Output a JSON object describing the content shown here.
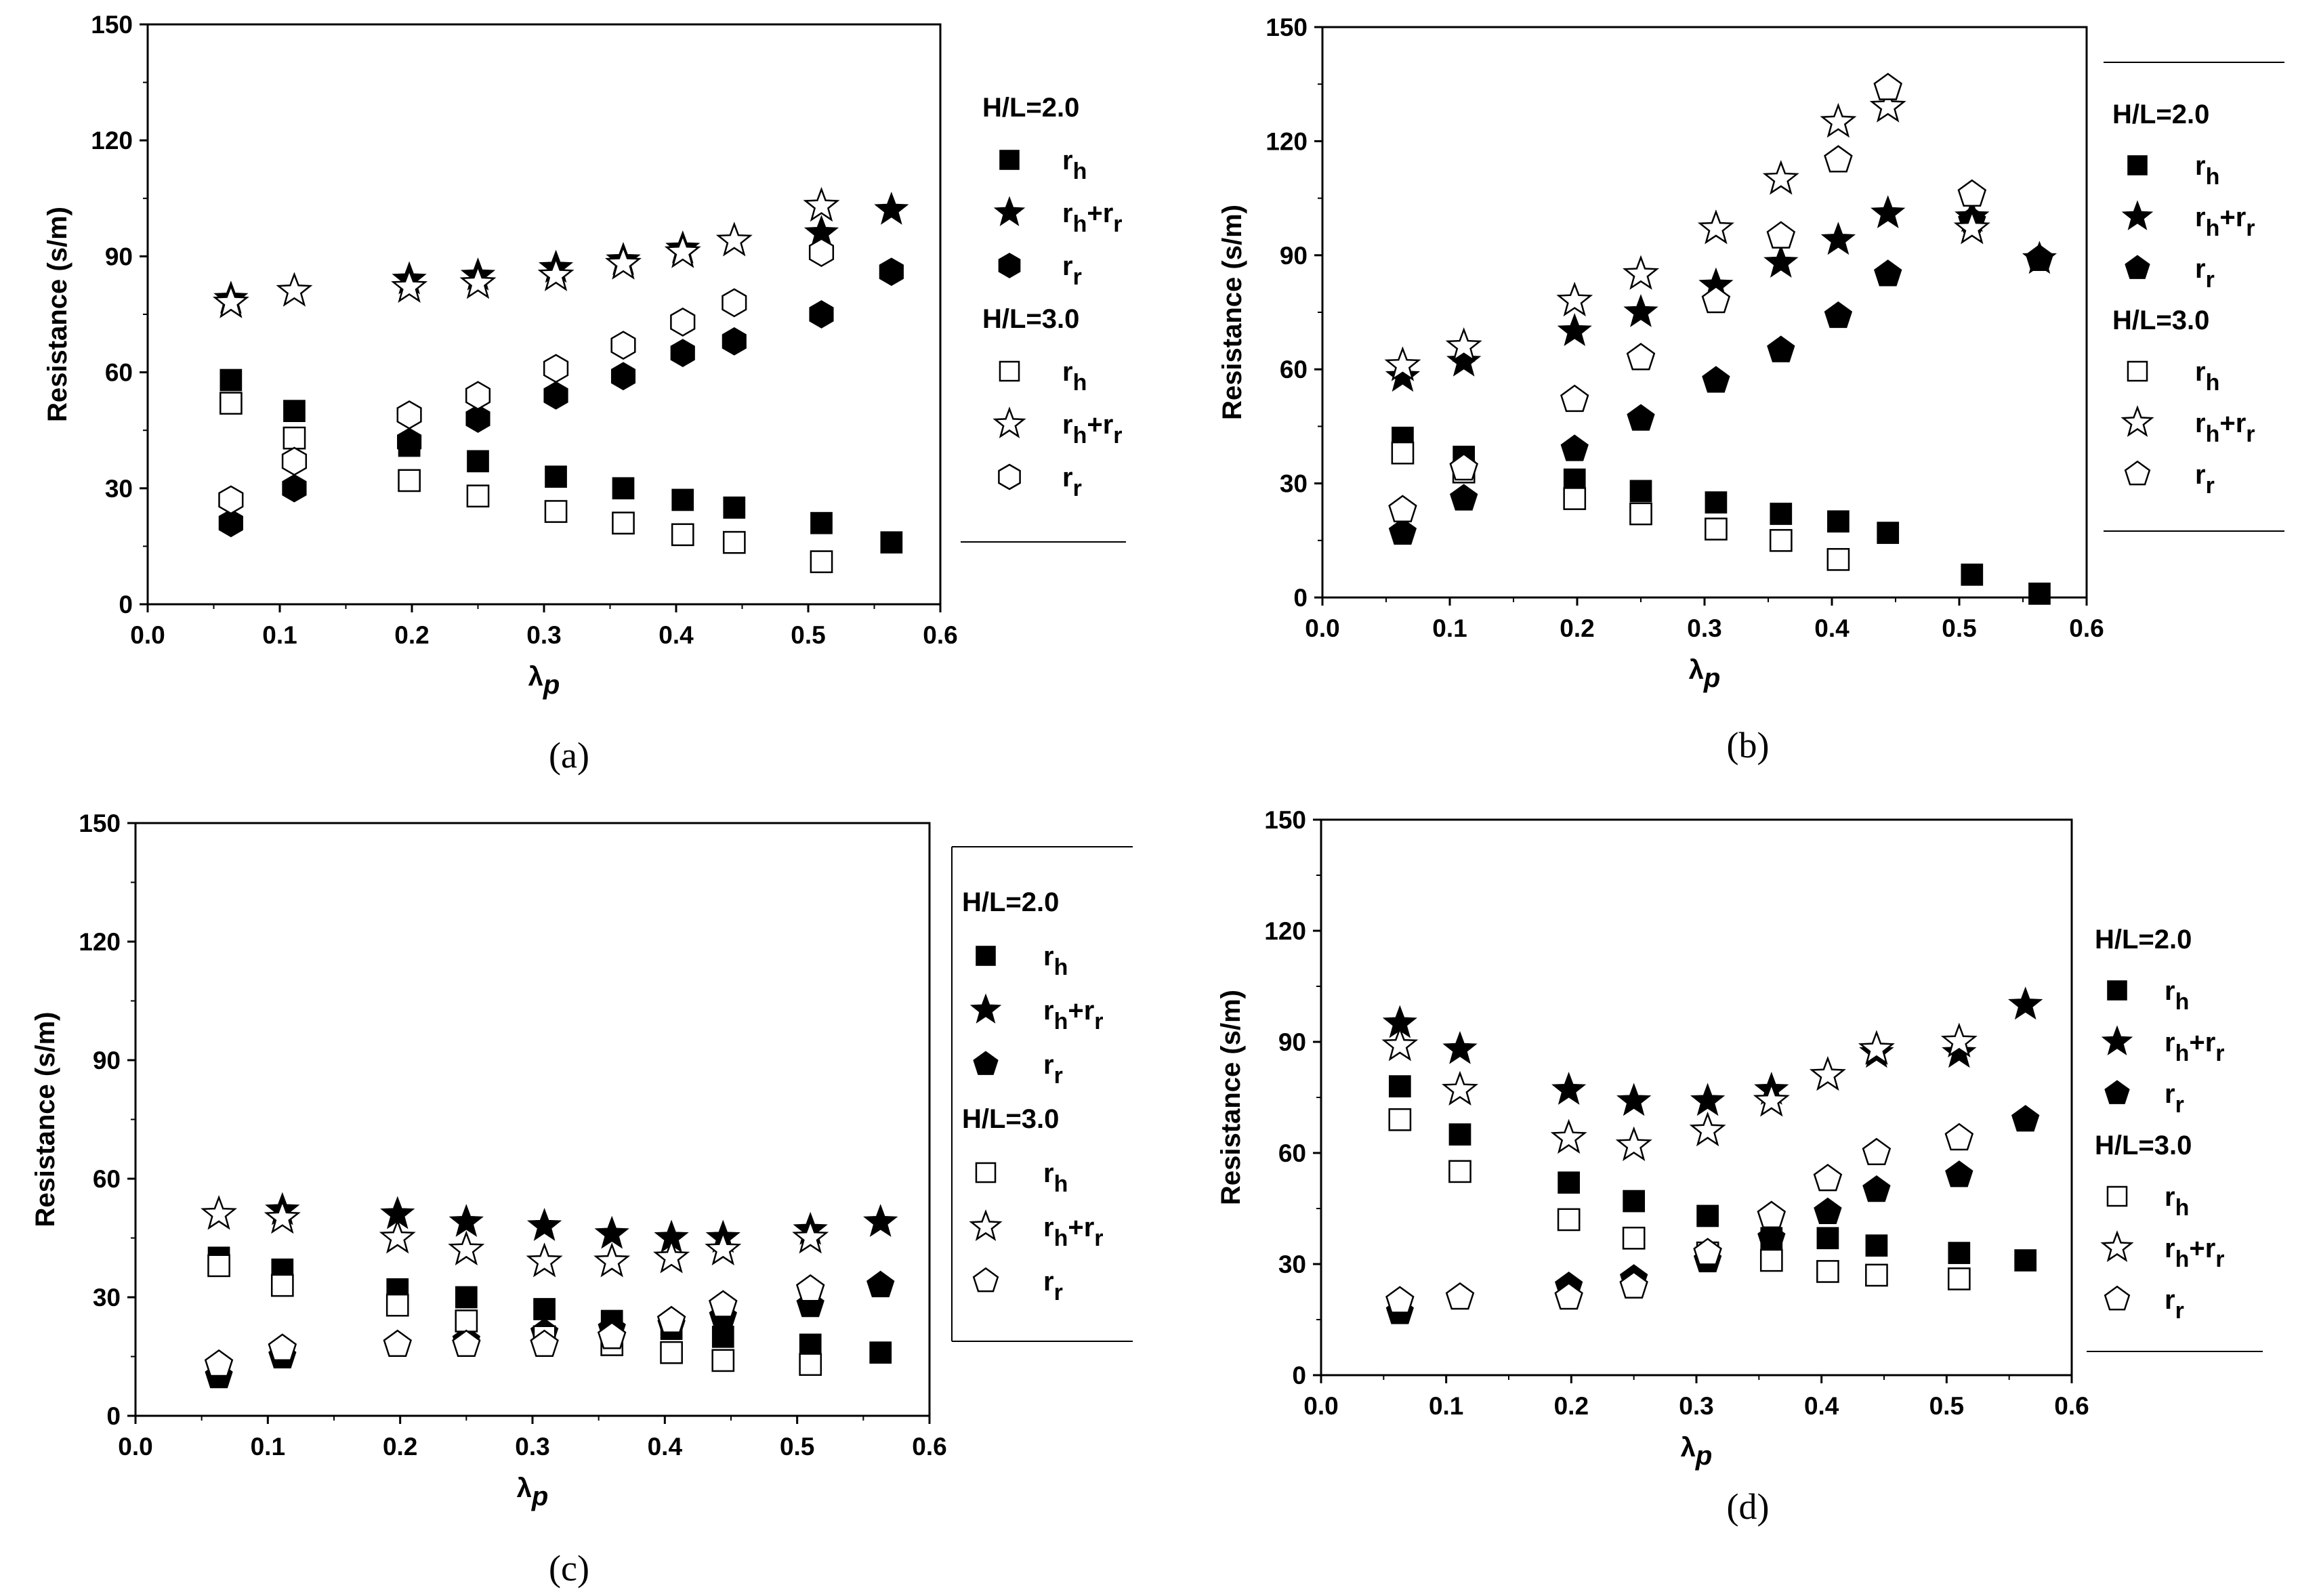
{
  "chart_data": [
    {
      "panel": "(a)",
      "type": "scatter",
      "xlabel": "λp",
      "ylabel": "Resistance (s/m)",
      "xlim": [
        0.0,
        0.6
      ],
      "ylim": [
        0,
        150
      ],
      "xticks": [
        "0.0",
        "0.1",
        "0.2",
        "0.3",
        "0.4",
        "0.5",
        "0.6"
      ],
      "yticks": [
        "0",
        "30",
        "60",
        "90",
        "120",
        "150"
      ],
      "legend": {
        "position": "right",
        "group1": "H/L=2.0",
        "group2": "H/L=3.0",
        "labels": [
          "rh",
          "rh+rr",
          "rr"
        ]
      },
      "series": [
        {
          "name": "H/L=2.0 rh",
          "marker": "square",
          "filled": true,
          "x": [
            0.063,
            0.111,
            0.198,
            0.25,
            0.309,
            0.36,
            0.405,
            0.444,
            0.51,
            0.563
          ],
          "y": [
            58,
            50,
            41,
            37,
            33,
            30,
            27,
            25,
            21,
            16
          ]
        },
        {
          "name": "H/L=2.0 rh+rr",
          "marker": "star",
          "filled": true,
          "x": [
            0.063,
            0.198,
            0.25,
            0.309,
            0.36,
            0.405,
            0.444,
            0.51,
            0.563
          ],
          "y": [
            79,
            84,
            85,
            87,
            89,
            92,
            94,
            96,
            102
          ]
        },
        {
          "name": "H/L=2.0 rr",
          "marker": "hexagon",
          "filled": true,
          "x": [
            0.063,
            0.111,
            0.198,
            0.25,
            0.309,
            0.36,
            0.405,
            0.444,
            0.51,
            0.563
          ],
          "y": [
            21,
            30,
            42,
            48,
            54,
            59,
            65,
            68,
            75,
            86
          ]
        },
        {
          "name": "H/L=3.0 rh",
          "marker": "square",
          "filled": false,
          "x": [
            0.063,
            0.111,
            0.198,
            0.25,
            0.309,
            0.36,
            0.405,
            0.444,
            0.51
          ],
          "y": [
            52,
            43,
            32,
            28,
            24,
            21,
            18,
            16,
            11
          ]
        },
        {
          "name": "H/L=3.0 rh+rr",
          "marker": "star",
          "filled": false,
          "x": [
            0.063,
            0.111,
            0.198,
            0.25,
            0.309,
            0.36,
            0.405,
            0.444,
            0.51
          ],
          "y": [
            78,
            81,
            82,
            83,
            85,
            88,
            91,
            94,
            103
          ]
        },
        {
          "name": "H/L=3.0 rr",
          "marker": "hexagon",
          "filled": false,
          "x": [
            0.063,
            0.111,
            0.198,
            0.25,
            0.309,
            0.36,
            0.405,
            0.444,
            0.51
          ],
          "y": [
            27,
            37,
            49,
            54,
            61,
            67,
            73,
            78,
            91
          ]
        }
      ]
    },
    {
      "panel": "(b)",
      "type": "scatter",
      "xlabel": "λp",
      "ylabel": "Resistance (s/m)",
      "xlim": [
        0.0,
        0.6
      ],
      "ylim": [
        0,
        150
      ],
      "xticks": [
        "0.0",
        "0.1",
        "0.2",
        "0.3",
        "0.4",
        "0.5",
        "0.6"
      ],
      "yticks": [
        "0",
        "30",
        "60",
        "90",
        "120",
        "150"
      ],
      "legend": {
        "position": "right",
        "group1": "H/L=2.0",
        "group2": "H/L=3.0",
        "labels": [
          "rh",
          "rh+rr",
          "rr"
        ]
      },
      "series": [
        {
          "name": "H/L=2.0 rh",
          "marker": "square",
          "filled": true,
          "x": [
            0.063,
            0.111,
            0.198,
            0.25,
            0.309,
            0.36,
            0.405,
            0.444,
            0.51,
            0.563
          ],
          "y": [
            42,
            37,
            31,
            28,
            25,
            22,
            20,
            17,
            6,
            1
          ]
        },
        {
          "name": "H/L=2.0 rh+rr",
          "marker": "star",
          "filled": true,
          "x": [
            0.063,
            0.111,
            0.198,
            0.25,
            0.309,
            0.36,
            0.405,
            0.444,
            0.51,
            0.563
          ],
          "y": [
            58,
            62,
            70,
            75,
            82,
            88,
            94,
            101,
            100,
            89
          ]
        },
        {
          "name": "H/L=2.0 rr",
          "marker": "pentagon",
          "filled": true,
          "x": [
            0.063,
            0.111,
            0.198,
            0.25,
            0.309,
            0.36,
            0.405,
            0.444,
            0.51,
            0.563
          ],
          "y": [
            17,
            26,
            39,
            47,
            57,
            65,
            74,
            85,
            99,
            89
          ]
        },
        {
          "name": "H/L=3.0 rh",
          "marker": "square",
          "filled": false,
          "x": [
            0.063,
            0.111,
            0.198,
            0.25,
            0.309,
            0.36,
            0.405
          ],
          "y": [
            38,
            33,
            26,
            22,
            18,
            15,
            10
          ]
        },
        {
          "name": "H/L=3.0 rh+rr",
          "marker": "star",
          "filled": false,
          "x": [
            0.063,
            0.111,
            0.198,
            0.25,
            0.309,
            0.36,
            0.405,
            0.444,
            0.51
          ],
          "y": [
            61,
            66,
            78,
            85,
            97,
            110,
            125,
            129,
            97
          ]
        },
        {
          "name": "H/L=3.0 rr",
          "marker": "pentagon",
          "filled": false,
          "x": [
            0.063,
            0.111,
            0.198,
            0.25,
            0.309,
            0.36,
            0.405,
            0.444,
            0.51
          ],
          "y": [
            23,
            34,
            52,
            63,
            78,
            95,
            115,
            134,
            106
          ]
        }
      ]
    },
    {
      "panel": "(c)",
      "type": "scatter",
      "xlabel": "λp",
      "ylabel": "Resistance (s/m)",
      "xlim": [
        0.0,
        0.6
      ],
      "ylim": [
        0,
        150
      ],
      "xticks": [
        "0.0",
        "0.1",
        "0.2",
        "0.3",
        "0.4",
        "0.5",
        "0.6"
      ],
      "yticks": [
        "0",
        "30",
        "60",
        "90",
        "120",
        "150"
      ],
      "legend": {
        "position": "right",
        "group1": "H/L=2.0",
        "group2": "H/L=3.0",
        "labels": [
          "rh",
          "rh+rr",
          "rr"
        ]
      },
      "series": [
        {
          "name": "H/L=2.0 rh",
          "marker": "square",
          "filled": true,
          "x": [
            0.063,
            0.111,
            0.198,
            0.25,
            0.309,
            0.36,
            0.405,
            0.444,
            0.51,
            0.563
          ],
          "y": [
            40,
            37,
            32,
            30,
            27,
            24,
            22,
            20,
            18,
            16
          ]
        },
        {
          "name": "H/L=2.0 rh+rr",
          "marker": "star",
          "filled": true,
          "x": [
            0.111,
            0.198,
            0.25,
            0.309,
            0.36,
            0.405,
            0.444,
            0.51,
            0.563
          ],
          "y": [
            52,
            51,
            49,
            48,
            46,
            45,
            45,
            47,
            49
          ]
        },
        {
          "name": "H/L=2.0 rr",
          "marker": "pentagon",
          "filled": true,
          "x": [
            0.063,
            0.111,
            0.25,
            0.309,
            0.36,
            0.405,
            0.444,
            0.51,
            0.563
          ],
          "y": [
            10,
            15,
            19,
            21,
            22,
            23,
            25,
            28,
            33
          ]
        },
        {
          "name": "H/L=3.0 rh",
          "marker": "square",
          "filled": false,
          "x": [
            0.063,
            0.111,
            0.198,
            0.25,
            0.309,
            0.36,
            0.405,
            0.444,
            0.51
          ],
          "y": [
            38,
            33,
            28,
            24,
            20,
            18,
            16,
            14,
            13
          ]
        },
        {
          "name": "H/L=3.0 rh+rr",
          "marker": "star",
          "filled": false,
          "x": [
            0.063,
            0.111,
            0.198,
            0.25,
            0.309,
            0.36,
            0.405,
            0.444,
            0.51
          ],
          "y": [
            51,
            50,
            45,
            42,
            39,
            39,
            40,
            42,
            45
          ]
        },
        {
          "name": "H/L=3.0 rr",
          "marker": "pentagon",
          "filled": false,
          "x": [
            0.063,
            0.111,
            0.198,
            0.25,
            0.309,
            0.36,
            0.405,
            0.444,
            0.51
          ],
          "y": [
            13,
            17,
            18,
            18,
            18,
            20,
            24,
            28,
            32
          ]
        }
      ]
    },
    {
      "panel": "(d)",
      "type": "scatter",
      "xlabel": "λp",
      "ylabel": "Resistance (s/m)",
      "xlim": [
        0.0,
        0.6
      ],
      "ylim": [
        0,
        150
      ],
      "xticks": [
        "0.0",
        "0.1",
        "0.2",
        "0.3",
        "0.4",
        "0.5",
        "0.6"
      ],
      "yticks": [
        "0",
        "30",
        "60",
        "90",
        "120",
        "150"
      ],
      "legend": {
        "position": "right",
        "group1": "H/L=2.0",
        "group2": "H/L=3.0",
        "labels": [
          "rh",
          "rh+rr",
          "rr"
        ]
      },
      "series": [
        {
          "name": "H/L=2.0 rh",
          "marker": "square",
          "filled": true,
          "x": [
            0.063,
            0.111,
            0.198,
            0.25,
            0.309,
            0.36,
            0.405,
            0.444,
            0.51,
            0.563
          ],
          "y": [
            78,
            65,
            52,
            47,
            43,
            37,
            37,
            35,
            33,
            31
          ]
        },
        {
          "name": "H/L=2.0 rh+rr",
          "marker": "star",
          "filled": true,
          "x": [
            0.063,
            0.111,
            0.198,
            0.25,
            0.309,
            0.36,
            0.444,
            0.51,
            0.563
          ],
          "y": [
            95,
            88,
            77,
            74,
            74,
            77,
            87,
            87,
            100
          ]
        },
        {
          "name": "H/L=2.0 rr",
          "marker": "pentagon",
          "filled": true,
          "x": [
            0.063,
            0.198,
            0.25,
            0.309,
            0.36,
            0.405,
            0.444,
            0.51,
            0.563
          ],
          "y": [
            17,
            24,
            26,
            31,
            37,
            44,
            50,
            54,
            69
          ]
        },
        {
          "name": "H/L=3.0 rh",
          "marker": "square",
          "filled": false,
          "x": [
            0.063,
            0.111,
            0.198,
            0.25,
            0.309,
            0.36,
            0.405,
            0.444,
            0.51
          ],
          "y": [
            69,
            55,
            42,
            37,
            33,
            31,
            28,
            27,
            26
          ]
        },
        {
          "name": "H/L=3.0 rh+rr",
          "marker": "star",
          "filled": false,
          "x": [
            0.063,
            0.111,
            0.198,
            0.25,
            0.309,
            0.36,
            0.405,
            0.444,
            0.51
          ],
          "y": [
            89,
            77,
            64,
            62,
            66,
            74,
            81,
            88,
            90
          ]
        },
        {
          "name": "H/L=3.0 rr",
          "marker": "pentagon",
          "filled": false,
          "x": [
            0.063,
            0.111,
            0.198,
            0.25,
            0.309,
            0.36,
            0.405,
            0.444,
            0.51
          ],
          "y": [
            20,
            21,
            21,
            24,
            33,
            43,
            53,
            60,
            64
          ]
        }
      ]
    }
  ]
}
